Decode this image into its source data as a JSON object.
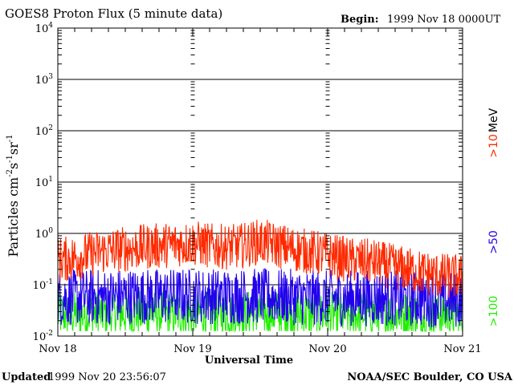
{
  "header": {
    "title": "GOES8 Proton Flux (5 minute data)",
    "begin_label": "Begin:",
    "begin_value": "1999 Nov 18 0000UT"
  },
  "footer": {
    "updated_label": "Updated",
    "updated_value": "1999 Nov 20 23:56:07",
    "source": "NOAA/SEC Boulder, CO USA"
  },
  "chart_data": {
    "type": "line",
    "title": "GOES8 Proton Flux (5 minute data)",
    "xlabel": "Universal Time",
    "ylabel_parts": [
      "Particles cm",
      "-2",
      "s",
      "-1",
      "sr",
      "-1"
    ],
    "yscale": "log",
    "ylim": [
      0.01,
      10000
    ],
    "xlim": [
      "1999-11-18",
      "1999-11-21"
    ],
    "x_ticks": [
      "Nov 18",
      "Nov 19",
      "Nov 20",
      "Nov 21"
    ],
    "y_ticks": [
      {
        "value": 0.01,
        "base": "10",
        "exp": "-2"
      },
      {
        "value": 0.1,
        "base": "10",
        "exp": "-1"
      },
      {
        "value": 1,
        "base": "10",
        "exp": "0"
      },
      {
        "value": 10,
        "base": "10",
        "exp": "1"
      },
      {
        "value": 100,
        "base": "10",
        "exp": "2"
      },
      {
        "value": 1000,
        "base": "10",
        "exp": "3"
      },
      {
        "value": 10000,
        "base": "10",
        "exp": "4"
      }
    ],
    "grid": true,
    "legend_position": "right",
    "unit_label": "MeV",
    "series": [
      {
        "name": ">10",
        "color": "#ff2a00",
        "anchors": [
          [
            "1999-11-18 00:00",
            0.3
          ],
          [
            "1999-11-18 04:00",
            0.35
          ],
          [
            "1999-11-18 08:00",
            0.45
          ],
          [
            "1999-11-18 12:00",
            0.5
          ],
          [
            "1999-11-18 16:00",
            0.55
          ],
          [
            "1999-11-18 20:00",
            0.6
          ],
          [
            "1999-11-19 00:00",
            0.65
          ],
          [
            "1999-11-19 04:00",
            0.55
          ],
          [
            "1999-11-19 08:00",
            0.55
          ],
          [
            "1999-11-19 12:00",
            0.7
          ],
          [
            "1999-11-19 16:00",
            0.55
          ],
          [
            "1999-11-19 20:00",
            0.45
          ],
          [
            "1999-11-20 00:00",
            0.38
          ],
          [
            "1999-11-20 04:00",
            0.3
          ],
          [
            "1999-11-20 08:00",
            0.28
          ],
          [
            "1999-11-20 12:00",
            0.22
          ],
          [
            "1999-11-20 16:00",
            0.18
          ],
          [
            "1999-11-20 20:00",
            0.15
          ],
          [
            "1999-11-21 00:00",
            0.14
          ]
        ],
        "noise_decades": 0.45
      },
      {
        "name": ">50",
        "color": "#2200ee",
        "anchors": [
          [
            "1999-11-18 00:00",
            0.055
          ],
          [
            "1999-11-18 12:00",
            0.06
          ],
          [
            "1999-11-19 00:00",
            0.06
          ],
          [
            "1999-11-19 12:00",
            0.06
          ],
          [
            "1999-11-20 00:00",
            0.055
          ],
          [
            "1999-11-20 12:00",
            0.055
          ],
          [
            "1999-11-21 00:00",
            0.05
          ]
        ],
        "noise_decades": 0.55
      },
      {
        "name": ">100",
        "color": "#22ee00",
        "anchors": [
          [
            "1999-11-18 00:00",
            0.026
          ],
          [
            "1999-11-18 12:00",
            0.028
          ],
          [
            "1999-11-19 00:00",
            0.027
          ],
          [
            "1999-11-19 12:00",
            0.028
          ],
          [
            "1999-11-20 00:00",
            0.026
          ],
          [
            "1999-11-20 12:00",
            0.027
          ],
          [
            "1999-11-21 00:00",
            0.026
          ]
        ],
        "noise_decades": 0.45
      }
    ]
  },
  "colors": {
    "background": "#ffffff",
    "axis": "#000000"
  }
}
